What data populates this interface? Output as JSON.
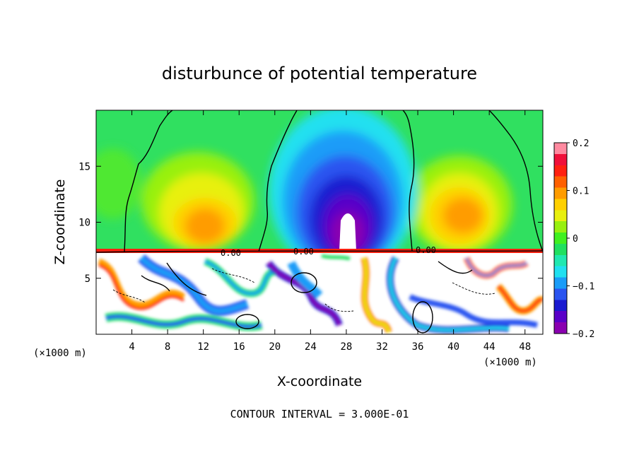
{
  "chart_data": {
    "type": "heatmap",
    "title": "disturbunce of potential temperature",
    "xlabel": "X-coordinate",
    "ylabel": "Z-coordinate",
    "x_unit_left": "(×1000 m)",
    "x_unit_right": "(×1000 m)",
    "xlim": [
      0,
      50
    ],
    "ylim": [
      0,
      20
    ],
    "x_ticks": [
      4,
      8,
      12,
      16,
      20,
      24,
      28,
      32,
      36,
      40,
      44,
      48
    ],
    "x_tick_labels": [
      "4",
      "8",
      "12",
      "16",
      "20",
      "24",
      "28",
      "32",
      "36",
      "40",
      "44",
      "48"
    ],
    "y_ticks": [
      5,
      10,
      15
    ],
    "y_tick_labels": [
      "5",
      "10",
      "15"
    ],
    "colorbar": {
      "min": -0.2,
      "max": 0.2,
      "ticks": [
        0.2,
        0.1,
        0,
        -0.1,
        -0.2
      ],
      "tick_labels": [
        "0.2",
        "0.1",
        "0",
        "−0.1",
        "−0.2"
      ],
      "colors": [
        "#8a00b0",
        "#5a00c8",
        "#1a1ad0",
        "#2a54f0",
        "#1a9cf8",
        "#20e0f0",
        "#20e8b0",
        "#20e060",
        "#40f020",
        "#98f010",
        "#e8f010",
        "#ffd000",
        "#ff9c00",
        "#ff6000",
        "#ff2010",
        "#f0103a",
        "#ff8aa0"
      ]
    },
    "contour_labels": [
      "0.00",
      "0.00",
      "0.00"
    ],
    "footer": "CONTOUR INTERVAL = 3.000E-01",
    "warm_anomalies": [
      {
        "x": 12,
        "z": 10.5,
        "value": 0.12
      },
      {
        "x": 41,
        "z": 11.5,
        "value": 0.14
      }
    ],
    "cold_anomaly": {
      "x": 29,
      "z": 10.5,
      "value": -0.2
    }
  }
}
